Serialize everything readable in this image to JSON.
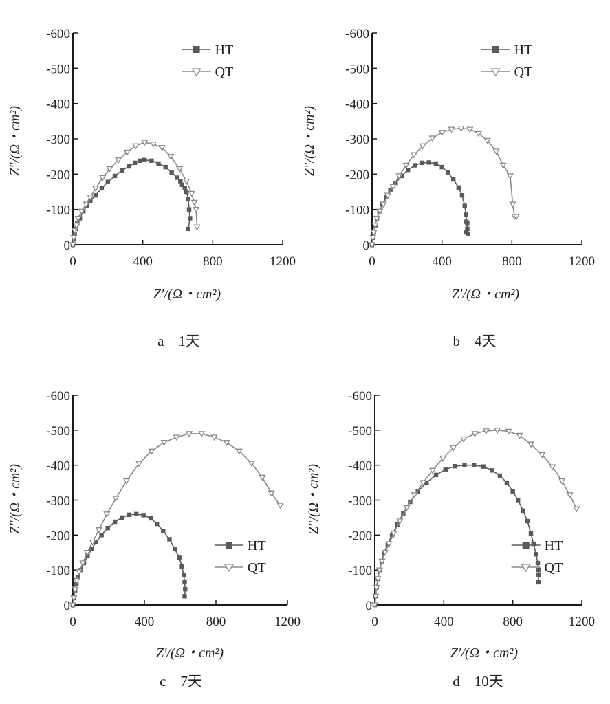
{
  "colors": {
    "HT": "#5a5a5a",
    "QT": "#8a8a8a",
    "axis": "#1a1a1a"
  },
  "chart_data": [
    {
      "type": "scatter",
      "caption": "a　1天",
      "xlabel": "Z′/(Ω・cm²)",
      "ylabel": "Z″/(Ω・cm²)",
      "xlim": [
        0,
        1200
      ],
      "ylim": [
        0,
        -600
      ],
      "xticks": [
        "0",
        "400",
        "800",
        "1200"
      ],
      "yticks": [
        "0",
        "-100",
        "-200",
        "-300",
        "-400",
        "-500",
        "-600"
      ],
      "legend_position": "top-right",
      "series": [
        {
          "name": "HT",
          "marker": "square",
          "x": [
            0,
            5,
            10,
            16,
            25,
            40,
            60,
            80,
            100,
            130,
            165,
            200,
            240,
            280,
            320,
            355,
            385,
            410,
            450,
            490,
            530,
            565,
            595,
            615,
            625,
            640,
            650,
            660,
            665,
            670,
            660
          ],
          "y": [
            0,
            -15,
            -30,
            -45,
            -60,
            -75,
            -95,
            -110,
            -125,
            -140,
            -160,
            -178,
            -195,
            -210,
            -222,
            -232,
            -238,
            -240,
            -238,
            -230,
            -220,
            -205,
            -190,
            -180,
            -170,
            -160,
            -150,
            -130,
            -100,
            -75,
            -45
          ]
        },
        {
          "name": "QT",
          "marker": "triangle-down",
          "x": [
            0,
            5,
            10,
            20,
            30,
            50,
            75,
            100,
            130,
            170,
            210,
            260,
            310,
            360,
            410,
            460,
            510,
            560,
            610,
            650,
            680,
            695,
            705,
            710
          ],
          "y": [
            0,
            -20,
            -40,
            -55,
            -75,
            -95,
            -115,
            -135,
            -160,
            -190,
            -215,
            -240,
            -262,
            -280,
            -290,
            -285,
            -275,
            -250,
            -215,
            -180,
            -145,
            -120,
            -100,
            -50
          ]
        }
      ]
    },
    {
      "type": "scatter",
      "caption": "b　4天",
      "xlabel": "Z′/(Ω・cm²)",
      "ylabel": "Z″/(Ω・cm²)",
      "xlim": [
        0,
        1200
      ],
      "ylim": [
        0,
        -600
      ],
      "xticks": [
        "0",
        "400",
        "800",
        "1200"
      ],
      "yticks": [
        "0",
        "-100",
        "-200",
        "-300",
        "-400",
        "-500",
        "-600"
      ],
      "legend_position": "top-right",
      "series": [
        {
          "name": "HT",
          "marker": "square",
          "x": [
            0,
            5,
            10,
            18,
            28,
            42,
            60,
            80,
            105,
            135,
            170,
            205,
            245,
            285,
            325,
            365,
            400,
            435,
            465,
            495,
            515,
            530,
            538,
            540,
            545,
            548,
            545,
            540
          ],
          "y": [
            0,
            -20,
            -35,
            -55,
            -75,
            -95,
            -115,
            -135,
            -155,
            -175,
            -195,
            -212,
            -225,
            -232,
            -233,
            -230,
            -220,
            -205,
            -185,
            -162,
            -140,
            -110,
            -85,
            -65,
            -45,
            -30,
            -60,
            -35
          ]
        },
        {
          "name": "QT",
          "marker": "triangle-down",
          "x": [
            0,
            5,
            10,
            18,
            28,
            45,
            65,
            90,
            120,
            155,
            195,
            240,
            290,
            345,
            400,
            455,
            510,
            560,
            610,
            660,
            710,
            750,
            790,
            805,
            815,
            825
          ],
          "y": [
            0,
            -20,
            -35,
            -55,
            -75,
            -95,
            -115,
            -140,
            -165,
            -195,
            -225,
            -255,
            -280,
            -302,
            -318,
            -327,
            -330,
            -327,
            -315,
            -295,
            -265,
            -225,
            -195,
            -115,
            -80,
            -80
          ]
        }
      ]
    },
    {
      "type": "scatter",
      "caption": "c　7天",
      "xlabel": "Z′/(Ω・cm²)",
      "ylabel": "Z″/(Ω・cm²)",
      "xlim": [
        0,
        1200
      ],
      "ylim": [
        0,
        -600
      ],
      "xticks": [
        "0",
        "400",
        "800",
        "1200"
      ],
      "yticks": [
        "0",
        "-100",
        "-200",
        "-300",
        "-400",
        "-500",
        "-600"
      ],
      "legend_position": "bottom-right",
      "series": [
        {
          "name": "HT",
          "marker": "square",
          "x": [
            0,
            5,
            12,
            20,
            30,
            45,
            62,
            82,
            105,
            130,
            160,
            195,
            235,
            275,
            315,
            355,
            395,
            435,
            470,
            505,
            540,
            570,
            595,
            610,
            620,
            625,
            628,
            625
          ],
          "y": [
            0,
            -20,
            -40,
            -60,
            -80,
            -100,
            -120,
            -140,
            -160,
            -180,
            -200,
            -220,
            -238,
            -250,
            -258,
            -260,
            -257,
            -248,
            -232,
            -212,
            -188,
            -160,
            -135,
            -110,
            -85,
            -65,
            -45,
            -25
          ]
        },
        {
          "name": "QT",
          "marker": "triangle-down",
          "x": [
            0,
            5,
            12,
            22,
            35,
            55,
            80,
            110,
            145,
            190,
            240,
            300,
            370,
            440,
            510,
            580,
            650,
            720,
            790,
            860,
            930,
            1000,
            1060,
            1110,
            1160
          ],
          "y": [
            0,
            -20,
            -45,
            -70,
            -95,
            -120,
            -150,
            -180,
            -215,
            -260,
            -305,
            -355,
            -405,
            -440,
            -465,
            -480,
            -490,
            -490,
            -480,
            -465,
            -440,
            -405,
            -365,
            -320,
            -285
          ]
        }
      ]
    },
    {
      "type": "scatter",
      "caption": "d　10天",
      "xlabel": "Z′/(Ω・cm²)",
      "ylabel": "Z″/(Ω・cm²)",
      "xlim": [
        0,
        1200
      ],
      "ylim": [
        0,
        -600
      ],
      "xticks": [
        "0",
        "400",
        "800",
        "1200"
      ],
      "yticks": [
        "0",
        "-100",
        "-200",
        "-300",
        "-400",
        "-500",
        "-600"
      ],
      "legend_position": "bottom-right",
      "series": [
        {
          "name": "HT",
          "marker": "square",
          "x": [
            0,
            5,
            10,
            18,
            28,
            40,
            55,
            75,
            100,
            130,
            165,
            205,
            250,
            300,
            355,
            410,
            465,
            520,
            575,
            630,
            680,
            725,
            765,
            800,
            830,
            860,
            885,
            905,
            920,
            935,
            945,
            948,
            950,
            948
          ],
          "y": [
            0,
            -25,
            -50,
            -75,
            -100,
            -125,
            -150,
            -175,
            -200,
            -230,
            -262,
            -295,
            -325,
            -350,
            -372,
            -388,
            -397,
            -400,
            -400,
            -396,
            -385,
            -370,
            -350,
            -325,
            -300,
            -270,
            -240,
            -205,
            -175,
            -145,
            -120,
            -100,
            -85,
            -65
          ]
        },
        {
          "name": "QT",
          "marker": "triangle-down",
          "x": [
            0,
            5,
            10,
            18,
            28,
            42,
            60,
            82,
            110,
            145,
            185,
            230,
            280,
            335,
            395,
            455,
            515,
            580,
            645,
            710,
            775,
            840,
            905,
            970,
            1030,
            1085,
            1130,
            1170
          ],
          "y": [
            0,
            -25,
            -50,
            -75,
            -100,
            -125,
            -150,
            -175,
            -205,
            -240,
            -278,
            -315,
            -350,
            -385,
            -420,
            -450,
            -475,
            -490,
            -498,
            -500,
            -497,
            -485,
            -460,
            -430,
            -395,
            -355,
            -315,
            -275
          ]
        }
      ]
    }
  ]
}
